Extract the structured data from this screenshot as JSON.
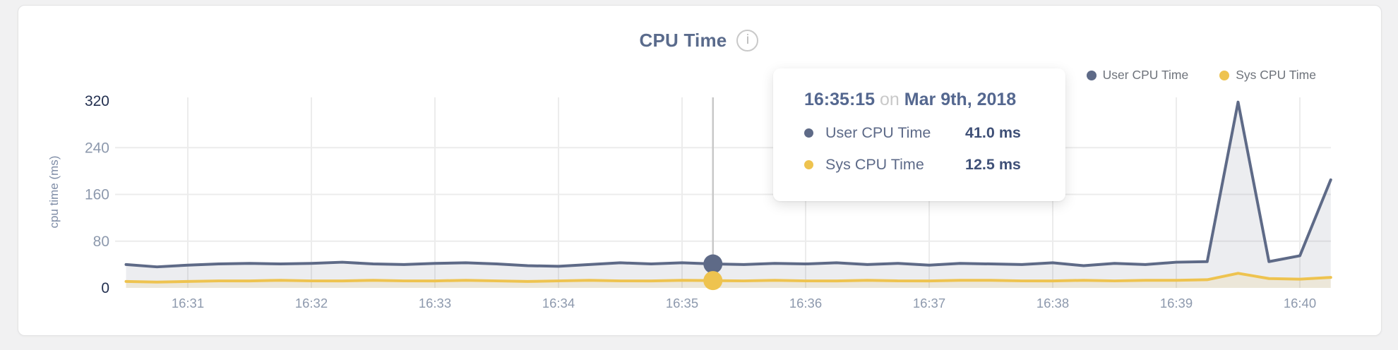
{
  "panel": {
    "title": "CPU Time",
    "info_icon": "i"
  },
  "tooltip": {
    "time": "16:35:15",
    "connector": "on",
    "date": "Mar 9th, 2018",
    "rows": [
      {
        "series": "User CPU Time",
        "value": "41.0 ms"
      },
      {
        "series": "Sys CPU Time",
        "value": "12.5 ms"
      }
    ]
  },
  "colors": {
    "user_line": "#5e6a87",
    "sys_line": "#eec34f",
    "grid": "#ececec",
    "hover_line": "#c8c8c8",
    "axis_label": "#8d99ad",
    "axis_label_dark": "#233050",
    "axis_title": "#7e8ca6",
    "title": "#5a6b8c",
    "legend_text": "#6e737b",
    "card_border": "#e3e3e4",
    "page_background": "#f1f1f2",
    "tooltip_heading": "#54678f",
    "tooltip_value": "#3f5077",
    "tooltip_muted": "#c9c9c9"
  },
  "chart_data": {
    "type": "area",
    "title": "CPU Time",
    "xlabel": "",
    "ylabel": "cpu time (ms)",
    "ylim": [
      0,
      320
    ],
    "y_ticks": [
      0,
      80,
      160,
      240,
      320
    ],
    "x_ticks": [
      "16:31",
      "16:32",
      "16:33",
      "16:34",
      "16:35",
      "16:36",
      "16:37",
      "16:38",
      "16:39",
      "16:40"
    ],
    "grid": true,
    "legend_position": "top-right",
    "sample_interval_seconds": 15,
    "x_seconds_from_16_30": [
      30,
      45,
      60,
      75,
      90,
      105,
      120,
      135,
      150,
      165,
      180,
      195,
      210,
      225,
      240,
      255,
      270,
      285,
      300,
      315,
      330,
      345,
      360,
      375,
      390,
      405,
      420,
      435,
      450,
      465,
      480,
      495,
      510,
      525,
      540,
      555,
      570,
      585,
      600,
      615
    ],
    "series": [
      {
        "name": "User CPU Time",
        "color": "#5e6a87",
        "fill": "rgba(95,106,135,0.12)",
        "unit": "ms",
        "values": [
          40,
          36,
          39,
          41,
          42,
          41,
          42,
          44,
          41,
          40,
          42,
          43,
          41,
          38,
          37,
          40,
          43,
          41,
          43,
          41,
          40,
          42,
          41,
          43,
          40,
          42,
          39,
          42,
          41,
          40,
          43,
          38,
          42,
          40,
          44,
          45,
          318,
          45,
          55,
          185
        ]
      },
      {
        "name": "Sys CPU Time",
        "color": "#eec34f",
        "fill": "rgba(238,195,79,0.14)",
        "unit": "ms",
        "values": [
          11,
          10,
          11,
          12,
          12,
          13,
          12,
          12,
          13,
          12,
          12,
          13,
          12,
          11,
          12,
          13,
          12,
          12,
          13,
          12.5,
          12,
          13,
          12,
          12,
          13,
          12,
          12,
          13,
          13,
          12,
          12,
          13,
          12,
          13,
          13,
          14,
          25,
          16,
          15,
          18
        ]
      }
    ],
    "hover": {
      "x_seconds_from_16_30": 315,
      "time": "16:35:15",
      "date": "Mar 9th, 2018",
      "values": {
        "User CPU Time": 41.0,
        "Sys CPU Time": 12.5
      }
    }
  }
}
